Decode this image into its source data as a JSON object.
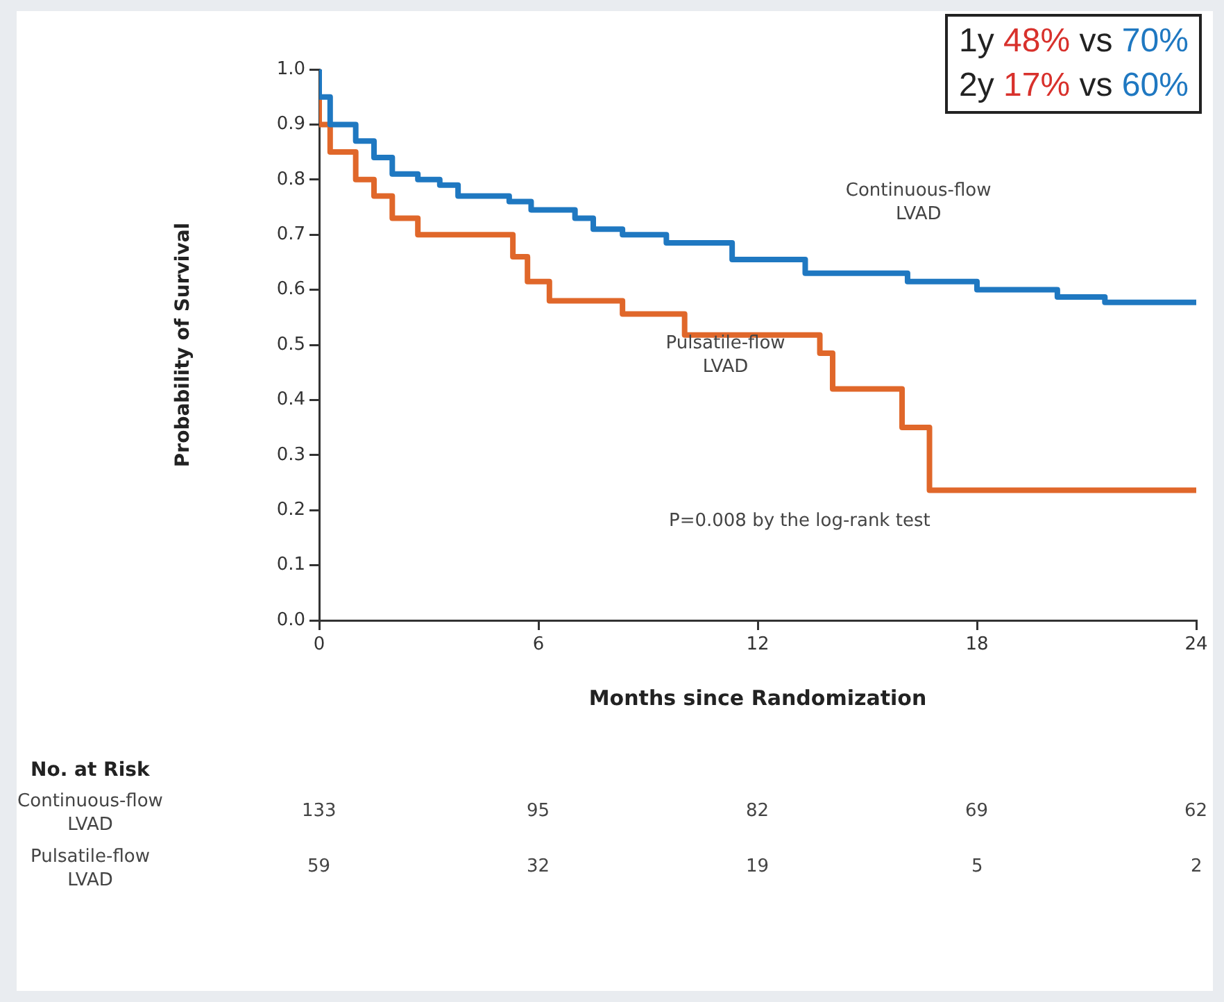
{
  "chart_data": {
    "type": "step",
    "xlabel": "Months since Randomization",
    "ylabel": "Probability of Survival",
    "xlim": [
      0,
      24
    ],
    "xticks": [
      0,
      6,
      12,
      18,
      24
    ],
    "ylim": [
      0,
      1
    ],
    "yticks": [
      {
        "value": 0,
        "label": "0.0"
      },
      {
        "value": 0.1,
        "label": "0.1"
      },
      {
        "value": 0.2,
        "label": "0.2"
      },
      {
        "value": 0.3,
        "label": "0.3"
      },
      {
        "value": 0.4,
        "label": "0.4"
      },
      {
        "value": 0.5,
        "label": "0.5"
      },
      {
        "value": 0.6,
        "label": "0.6"
      },
      {
        "value": 0.7,
        "label": "0.7"
      },
      {
        "value": 0.8,
        "label": "0.8"
      },
      {
        "value": 0.9,
        "label": "0.9"
      },
      {
        "value": 1,
        "label": "1.0"
      }
    ],
    "grid": false,
    "legend": false,
    "marker": "none",
    "line_style": "solid",
    "series": [
      {
        "name": "Continuous-flow LVAD",
        "color": "#1f78c1",
        "x": [
          0,
          0.3,
          1,
          1.5,
          2,
          2.7,
          3.3,
          3.8,
          5.2,
          5.8,
          7,
          7.5,
          8.3,
          9.5,
          11.3,
          13.3,
          16.1,
          18,
          20.2,
          21.5,
          22.8,
          24
        ],
        "values": [
          1,
          0.95,
          0.9,
          0.87,
          0.84,
          0.81,
          0.8,
          0.79,
          0.77,
          0.76,
          0.745,
          0.73,
          0.71,
          0.7,
          0.685,
          0.655,
          0.63,
          0.615,
          0.6,
          0.587,
          0.577,
          0.577
        ]
      },
      {
        "name": "Pulsatile-flow LVAD",
        "color": "#e0672a",
        "x": [
          0,
          0.3,
          1,
          1.5,
          2,
          2.7,
          5.3,
          5.7,
          6.3,
          8.3,
          10,
          13.7,
          14.05,
          15.95,
          16.7,
          21.65,
          24
        ],
        "values": [
          1,
          0.9,
          0.85,
          0.8,
          0.77,
          0.73,
          0.7,
          0.66,
          0.615,
          0.58,
          0.556,
          0.518,
          0.485,
          0.42,
          0.35,
          0.236,
          0.236
        ]
      }
    ],
    "annotations": [
      "1y 48% vs 70%",
      "2y 17% vs 60%",
      "P=0.008 by the log-rank test",
      "No. at Risk",
      "Continuous-flow LVAD",
      "133",
      "95",
      "82",
      "69",
      "62",
      "Pulsatile-flow LVAD",
      "59",
      "32",
      "19",
      "5",
      "2"
    ]
  }
}
